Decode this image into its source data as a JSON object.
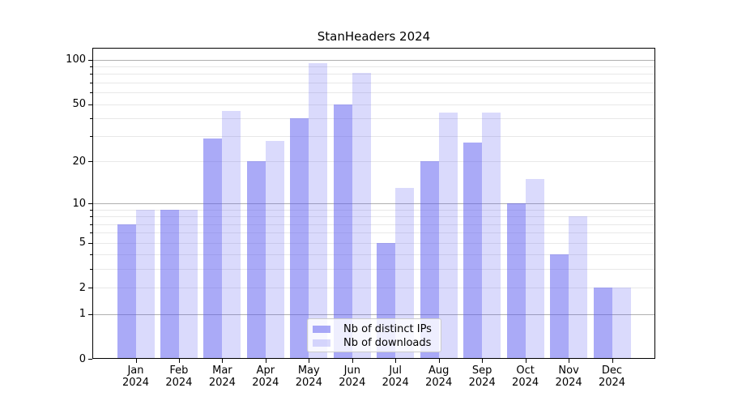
{
  "title": "StanHeaders 2024",
  "chart_data": {
    "type": "bar",
    "title": "StanHeaders 2024",
    "categories": [
      "Jan",
      "Feb",
      "Mar",
      "Apr",
      "May",
      "Jun",
      "Jul",
      "Aug",
      "Sep",
      "Oct",
      "Nov",
      "Dec"
    ],
    "category_year": "2024",
    "series": [
      {
        "name": "Nb of distinct IPs",
        "color": "rgba(85,85,240,0.5)",
        "values": [
          7,
          9,
          29,
          20,
          40,
          50,
          5,
          20,
          27,
          10,
          4,
          2
        ]
      },
      {
        "name": "Nb of downloads",
        "color": "rgba(85,85,240,0.22)",
        "values": [
          9,
          9,
          45,
          28,
          95,
          82,
          13,
          44,
          44,
          15,
          8,
          2
        ]
      }
    ],
    "xlabel": "",
    "ylabel": "",
    "yscale": "log1p",
    "ylim": [
      0,
      121
    ],
    "ytick_values": [
      0,
      1,
      2,
      5,
      10,
      20,
      50,
      100
    ],
    "ytick_labels": [
      "0",
      "1",
      "2",
      "5",
      "10",
      "20",
      "50",
      "100"
    ],
    "major_gridlines": [
      1,
      10,
      100
    ],
    "minor_gridlines": [
      2,
      3,
      4,
      5,
      6,
      7,
      8,
      9,
      20,
      30,
      40,
      50,
      60,
      70,
      80,
      90
    ],
    "grid": true,
    "legend_position": "inside-bottom-center",
    "colors": {
      "grid_major": "#b0b0b0",
      "grid_minor": "#e8e8e8",
      "axis": "#000000",
      "background": "#ffffff",
      "text": "#000000"
    }
  }
}
